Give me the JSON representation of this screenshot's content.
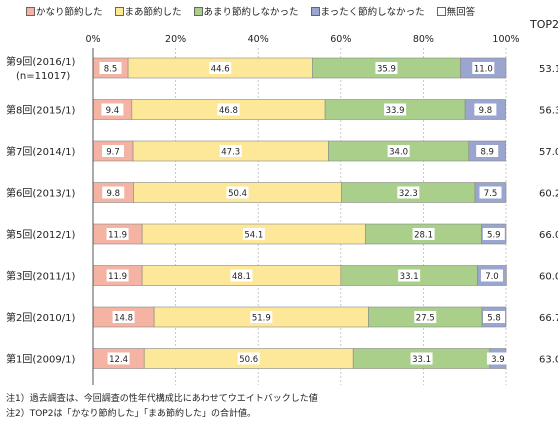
{
  "legend": {
    "items": [
      {
        "label": "かなり節約した",
        "color": "#f4b3a3"
      },
      {
        "label": "まあ節約した",
        "color": "#fde89a"
      },
      {
        "label": "あまり節約しなかった",
        "color": "#a9cf8a"
      },
      {
        "label": "まったく節約しなかった",
        "color": "#9aa6cf"
      },
      {
        "label": "無回答",
        "color": "#ffffff"
      }
    ],
    "top2_label": "TOP2"
  },
  "notes": [
    "注1）過去調査は、今回調査の性年代構成比にあわせてウエイトバックした値",
    "注2）TOP2は「かなり節約した」「まあ節約した」の合計値。"
  ],
  "chart_data": {
    "type": "bar",
    "orientation": "horizontal",
    "stacked": true,
    "xlim": [
      0,
      100
    ],
    "x_ticks": [
      "0%",
      "20%",
      "40%",
      "60%",
      "80%",
      "100%"
    ],
    "grid": true,
    "categories": [
      [
        "第9回(2016/1)",
        "(n=11017)"
      ],
      [
        "第8回(2015/1)"
      ],
      [
        "第7回(2014/1)"
      ],
      [
        "第6回(2013/1)"
      ],
      [
        "第5回(2012/1)"
      ],
      [
        "第3回(2011/1)"
      ],
      [
        "第2回(2010/1)"
      ],
      [
        "第1回(2009/1)"
      ]
    ],
    "series": [
      {
        "name": "かなり節約した",
        "color": "#f4b3a3",
        "values": [
          8.5,
          9.4,
          9.7,
          9.8,
          11.9,
          11.9,
          14.8,
          12.4
        ],
        "labels": [
          "8.5",
          "9.4",
          "9.7",
          "9.8",
          "11.9",
          "11.9",
          "14.8",
          "12.4"
        ]
      },
      {
        "name": "まあ節約した",
        "color": "#fde89a",
        "values": [
          44.6,
          46.8,
          47.3,
          50.4,
          54.1,
          48.1,
          51.9,
          50.6
        ],
        "labels": [
          "44.6",
          "46.8",
          "47.3",
          "50.4",
          "54.1",
          "48.1",
          "51.9",
          "50.6"
        ]
      },
      {
        "name": "あまり節約しなかった",
        "color": "#a9cf8a",
        "values": [
          35.9,
          33.9,
          34.0,
          32.3,
          28.1,
          33.1,
          27.5,
          33.1
        ],
        "labels": [
          "35.9",
          "33.9",
          "34.0",
          "32.3",
          "28.1",
          "33.1",
          "27.5",
          "33.1"
        ]
      },
      {
        "name": "まったく節約しなかった",
        "color": "#9aa6cf",
        "values": [
          11.0,
          9.8,
          8.9,
          7.5,
          5.9,
          7.0,
          5.8,
          3.9
        ],
        "labels": [
          "11.0",
          "9.8",
          "8.9",
          "7.5",
          "5.9",
          "7.0",
          "5.8",
          "3.9"
        ]
      },
      {
        "name": "無回答",
        "color": "#ffffff",
        "values": [
          0,
          0,
          0,
          0,
          0,
          0,
          0,
          0
        ],
        "labels": [
          "",
          "",
          "",
          "",
          "",
          "",
          "",
          ""
        ]
      }
    ],
    "top2": [
      "53.1",
      "56.3",
      "57.0",
      "60.2",
      "66.0",
      "60.0",
      "66.7",
      "63.0"
    ]
  }
}
